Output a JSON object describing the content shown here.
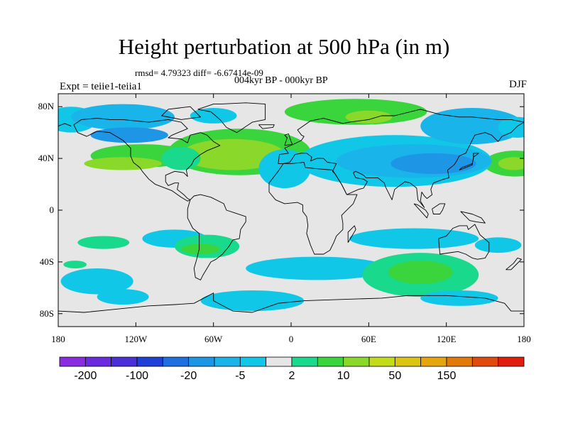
{
  "title": "Height perturbation at 500 hPa (in m)",
  "stats": "rmsd= 4.79323 diff= -6.67414e-09",
  "period": "004kyr BP - 000kyr BP",
  "experiment": "Expt = teiie1-teiia1",
  "season": "DJF",
  "map": {
    "projection": "cylindrical-equidistant",
    "lon_range": [
      -180,
      180
    ],
    "lat_range": [
      -90,
      90
    ],
    "ocean_land_background": "#e6e6e6",
    "lat_ticks": [
      {
        "value": 80,
        "label": "80N"
      },
      {
        "value": 40,
        "label": "40N"
      },
      {
        "value": 0,
        "label": "0"
      },
      {
        "value": -40,
        "label": "40S"
      },
      {
        "value": -80,
        "label": "80S"
      }
    ],
    "lon_ticks": [
      {
        "value": -180,
        "label": "180"
      },
      {
        "value": -120,
        "label": "120W"
      },
      {
        "value": -60,
        "label": "60W"
      },
      {
        "value": 0,
        "label": "0"
      },
      {
        "value": 60,
        "label": "60E"
      },
      {
        "value": 120,
        "label": "120E"
      },
      {
        "value": 180,
        "label": "180"
      }
    ]
  },
  "colorbar": {
    "colors": [
      "#8a2be2",
      "#6a2be0",
      "#4b2fd8",
      "#1f3fd6",
      "#1e6fe0",
      "#1e96e6",
      "#19b4ea",
      "#11c7e8",
      "#e6e6e6",
      "#18d98c",
      "#3ad43c",
      "#8ad82a",
      "#c2dc1a",
      "#dcc414",
      "#e6a50c",
      "#e27a0a",
      "#e04a0c",
      "#e01e10"
    ],
    "labels": [
      {
        "text": "-200",
        "after_box": 1
      },
      {
        "text": "-100",
        "after_box": 3
      },
      {
        "text": "-20",
        "after_box": 5
      },
      {
        "text": "-5",
        "after_box": 7
      },
      {
        "text": "2",
        "after_box": 9
      },
      {
        "text": "10",
        "after_box": 11
      },
      {
        "text": "50",
        "after_box": 13
      },
      {
        "text": "150",
        "after_box": 15
      }
    ]
  },
  "field_regions": [
    {
      "lon": -115,
      "lat": 42,
      "rx": 40,
      "ry": 9,
      "color": "#3ad43c"
    },
    {
      "lon": -130,
      "lat": 36,
      "rx": 30,
      "ry": 5,
      "color": "#8ad82a"
    },
    {
      "lon": 173,
      "lat": 36,
      "rx": 24,
      "ry": 10,
      "color": "#3ad43c"
    },
    {
      "lon": 172,
      "lat": 36,
      "rx": 12,
      "ry": 5,
      "color": "#8ad82a"
    },
    {
      "lon": -170,
      "lat": 70,
      "rx": 20,
      "ry": 10,
      "color": "#11c7e8"
    },
    {
      "lon": -130,
      "lat": 72,
      "rx": 40,
      "ry": 10,
      "color": "#19b4ea"
    },
    {
      "lon": -125,
      "lat": 58,
      "rx": 30,
      "ry": 6,
      "color": "#1e96e6"
    },
    {
      "lon": -60,
      "lat": 73,
      "rx": 18,
      "ry": 6,
      "color": "#11c7e8"
    },
    {
      "lon": -40,
      "lat": 45,
      "rx": 55,
      "ry": 18,
      "color": "#3ad43c"
    },
    {
      "lon": -45,
      "lat": 43,
      "rx": 40,
      "ry": 12,
      "color": "#8ad82a"
    },
    {
      "lon": -85,
      "lat": 40,
      "rx": 15,
      "ry": 9,
      "color": "#18d98c"
    },
    {
      "lon": 50,
      "lat": 76,
      "rx": 55,
      "ry": 10,
      "color": "#3ad43c"
    },
    {
      "lon": 60,
      "lat": 72,
      "rx": 18,
      "ry": 5,
      "color": "#8ad82a"
    },
    {
      "lon": -5,
      "lat": 32,
      "rx": 20,
      "ry": 15,
      "color": "#11c7e8"
    },
    {
      "lon": 80,
      "lat": 38,
      "rx": 75,
      "ry": 20,
      "color": "#11c7e8"
    },
    {
      "lon": 95,
      "lat": 38,
      "rx": 60,
      "ry": 13,
      "color": "#19b4ea"
    },
    {
      "lon": 110,
      "lat": 36,
      "rx": 33,
      "ry": 8,
      "color": "#1e96e6"
    },
    {
      "lon": 140,
      "lat": 65,
      "rx": 40,
      "ry": 14,
      "color": "#19b4ea"
    },
    {
      "lon": 175,
      "lat": 64,
      "rx": 15,
      "ry": 8,
      "color": "#11c7e8"
    },
    {
      "lon": -145,
      "lat": -25,
      "rx": 20,
      "ry": 5,
      "color": "#18d98c"
    },
    {
      "lon": -90,
      "lat": -22,
      "rx": 25,
      "ry": 7,
      "color": "#11c7e8"
    },
    {
      "lon": -65,
      "lat": -28,
      "rx": 25,
      "ry": 9,
      "color": "#18d98c"
    },
    {
      "lon": -70,
      "lat": -30,
      "rx": 15,
      "ry": 4,
      "color": "#3ad43c"
    },
    {
      "lon": -150,
      "lat": -55,
      "rx": 28,
      "ry": 10,
      "color": "#11c7e8"
    },
    {
      "lon": -130,
      "lat": -67,
      "rx": 20,
      "ry": 6,
      "color": "#11c7e8"
    },
    {
      "lon": -167,
      "lat": -42,
      "rx": 9,
      "ry": 3,
      "color": "#18d98c"
    },
    {
      "lon": 95,
      "lat": -22,
      "rx": 50,
      "ry": 8,
      "color": "#11c7e8"
    },
    {
      "lon": 160,
      "lat": -27,
      "rx": 18,
      "ry": 6,
      "color": "#11c7e8"
    },
    {
      "lon": 20,
      "lat": -45,
      "rx": 55,
      "ry": 9,
      "color": "#11c7e8"
    },
    {
      "lon": 100,
      "lat": -50,
      "rx": 45,
      "ry": 17,
      "color": "#18d98c"
    },
    {
      "lon": 100,
      "lat": -48,
      "rx": 25,
      "ry": 9,
      "color": "#3ad43c"
    },
    {
      "lon": -30,
      "lat": -70,
      "rx": 40,
      "ry": 8,
      "color": "#11c7e8"
    },
    {
      "lon": 130,
      "lat": -68,
      "rx": 30,
      "ry": 6,
      "color": "#11c7e8"
    }
  ],
  "coastlines": [
    [
      [
        -168,
        66
      ],
      [
        -162,
        70
      ],
      [
        -150,
        71
      ],
      [
        -140,
        70
      ],
      [
        -130,
        70
      ],
      [
        -120,
        69
      ],
      [
        -110,
        68
      ],
      [
        -95,
        70
      ],
      [
        -85,
        68
      ],
      [
        -80,
        63
      ],
      [
        -92,
        58
      ],
      [
        -95,
        56
      ],
      [
        -85,
        55
      ],
      [
        -80,
        52
      ],
      [
        -78,
        58
      ],
      [
        -70,
        60
      ],
      [
        -65,
        58
      ],
      [
        -60,
        53
      ],
      [
        -55,
        50
      ],
      [
        -65,
        46
      ],
      [
        -70,
        43
      ],
      [
        -75,
        39
      ],
      [
        -77,
        35
      ],
      [
        -81,
        31
      ],
      [
        -80,
        26
      ],
      [
        -83,
        29
      ],
      [
        -90,
        30
      ],
      [
        -97,
        27
      ],
      [
        -97,
        22
      ],
      [
        -95,
        19
      ],
      [
        -90,
        21
      ],
      [
        -87,
        21
      ],
      [
        -88,
        16
      ],
      [
        -83,
        12
      ],
      [
        -80,
        9
      ],
      [
        -78,
        8
      ],
      [
        -80,
        7
      ],
      [
        -85,
        10
      ],
      [
        -92,
        15
      ],
      [
        -105,
        20
      ],
      [
        -110,
        24
      ],
      [
        -115,
        30
      ],
      [
        -117,
        33
      ],
      [
        -122,
        37
      ],
      [
        -124,
        42
      ],
      [
        -124,
        48
      ],
      [
        -130,
        54
      ],
      [
        -140,
        60
      ],
      [
        -150,
        61
      ],
      [
        -158,
        57
      ],
      [
        -165,
        60
      ],
      [
        -168,
        66
      ]
    ],
    [
      [
        -55,
        82
      ],
      [
        -35,
        83
      ],
      [
        -20,
        82
      ],
      [
        -20,
        70
      ],
      [
        -30,
        68
      ],
      [
        -42,
        60
      ],
      [
        -50,
        64
      ],
      [
        -55,
        70
      ],
      [
        -62,
        76
      ],
      [
        -72,
        78
      ],
      [
        -60,
        82
      ],
      [
        -55,
        82
      ]
    ],
    [
      [
        -78,
        8
      ],
      [
        -75,
        11
      ],
      [
        -70,
        12
      ],
      [
        -62,
        10
      ],
      [
        -52,
        5
      ],
      [
        -50,
        0
      ],
      [
        -44,
        -2
      ],
      [
        -35,
        -5
      ],
      [
        -35,
        -9
      ],
      [
        -39,
        -15
      ],
      [
        -40,
        -22
      ],
      [
        -45,
        -23
      ],
      [
        -48,
        -28
      ],
      [
        -53,
        -34
      ],
      [
        -58,
        -38
      ],
      [
        -62,
        -40
      ],
      [
        -65,
        -45
      ],
      [
        -68,
        -50
      ],
      [
        -70,
        -54
      ],
      [
        -74,
        -52
      ],
      [
        -75,
        -45
      ],
      [
        -73,
        -38
      ],
      [
        -71,
        -30
      ],
      [
        -71,
        -18
      ],
      [
        -76,
        -14
      ],
      [
        -80,
        -6
      ],
      [
        -80,
        -2
      ],
      [
        -80,
        1
      ],
      [
        -78,
        8
      ]
    ],
    [
      [
        -10,
        36
      ],
      [
        -9,
        43
      ],
      [
        -2,
        44
      ],
      [
        -5,
        48
      ],
      [
        2,
        51
      ],
      [
        8,
        54
      ],
      [
        10,
        57
      ],
      [
        8,
        58
      ],
      [
        5,
        62
      ],
      [
        15,
        69
      ],
      [
        25,
        71
      ],
      [
        40,
        67
      ],
      [
        45,
        68
      ],
      [
        60,
        70
      ],
      [
        70,
        73
      ],
      [
        80,
        73
      ],
      [
        100,
        78
      ],
      [
        115,
        74
      ],
      [
        130,
        72
      ],
      [
        140,
        72
      ],
      [
        160,
        70
      ],
      [
        170,
        70
      ],
      [
        180,
        68
      ]
    ],
    [
      [
        -180,
        65
      ],
      [
        -175,
        67
      ],
      [
        -170,
        65
      ]
    ],
    [
      [
        180,
        68
      ],
      [
        175,
        65
      ],
      [
        170,
        60
      ],
      [
        163,
        57
      ],
      [
        160,
        53
      ],
      [
        155,
        58
      ],
      [
        150,
        60
      ],
      [
        142,
        58
      ],
      [
        140,
        54
      ],
      [
        135,
        44
      ],
      [
        130,
        42
      ],
      [
        128,
        38
      ],
      [
        126,
        35
      ],
      [
        121,
        31
      ],
      [
        122,
        25
      ],
      [
        118,
        24
      ],
      [
        110,
        21
      ],
      [
        108,
        16
      ],
      [
        109,
        12
      ],
      [
        105,
        9
      ],
      [
        103,
        11
      ],
      [
        101,
        14
      ],
      [
        100,
        7
      ],
      [
        103,
        2
      ],
      [
        98,
        8
      ],
      [
        97,
        17
      ],
      [
        92,
        21
      ],
      [
        88,
        22
      ],
      [
        80,
        16
      ],
      [
        78,
        8
      ],
      [
        73,
        18
      ],
      [
        72,
        21
      ],
      [
        67,
        25
      ],
      [
        58,
        25
      ],
      [
        56,
        27
      ],
      [
        50,
        30
      ],
      [
        48,
        29
      ],
      [
        50,
        25
      ],
      [
        56,
        24
      ],
      [
        59,
        22
      ],
      [
        56,
        17
      ],
      [
        52,
        16
      ],
      [
        43,
        12
      ],
      [
        39,
        20
      ],
      [
        34,
        28
      ],
      [
        32,
        30
      ],
      [
        35,
        36
      ],
      [
        28,
        37
      ],
      [
        25,
        40
      ],
      [
        20,
        40
      ],
      [
        15,
        38
      ],
      [
        16,
        41
      ],
      [
        12,
        44
      ],
      [
        8,
        44
      ],
      [
        3,
        43
      ],
      [
        -1,
        37
      ],
      [
        -6,
        36
      ],
      [
        -10,
        36
      ]
    ],
    [
      [
        -6,
        36
      ],
      [
        -10,
        30
      ],
      [
        -17,
        21
      ],
      [
        -17,
        14
      ],
      [
        -12,
        8
      ],
      [
        -5,
        5
      ],
      [
        5,
        6
      ],
      [
        9,
        4
      ],
      [
        9,
        -1
      ],
      [
        12,
        -5
      ],
      [
        13,
        -12
      ],
      [
        12,
        -18
      ],
      [
        15,
        -27
      ],
      [
        18,
        -34
      ],
      [
        25,
        -34
      ],
      [
        30,
        -31
      ],
      [
        33,
        -25
      ],
      [
        35,
        -20
      ],
      [
        40,
        -15
      ],
      [
        40,
        -10
      ],
      [
        39,
        -4
      ],
      [
        42,
        -1
      ],
      [
        48,
        5
      ],
      [
        51,
        12
      ],
      [
        43,
        12
      ],
      [
        39,
        20
      ],
      [
        34,
        28
      ],
      [
        32,
        31
      ],
      [
        20,
        32
      ],
      [
        11,
        33
      ],
      [
        10,
        37
      ],
      [
        0,
        36
      ],
      [
        -6,
        36
      ]
    ],
    [
      [
        44,
        -25
      ],
      [
        50,
        -15
      ],
      [
        49,
        -12
      ],
      [
        44,
        -17
      ],
      [
        44,
        -25
      ]
    ],
    [
      [
        114,
        -22
      ],
      [
        120,
        -20
      ],
      [
        125,
        -14
      ],
      [
        130,
        -12
      ],
      [
        136,
        -12
      ],
      [
        137,
        -15
      ],
      [
        142,
        -11
      ],
      [
        146,
        -19
      ],
      [
        153,
        -25
      ],
      [
        153,
        -32
      ],
      [
        150,
        -37
      ],
      [
        144,
        -38
      ],
      [
        140,
        -37
      ],
      [
        135,
        -34
      ],
      [
        129,
        -32
      ],
      [
        115,
        -34
      ],
      [
        114,
        -22
      ]
    ],
    [
      [
        166,
        -46
      ],
      [
        172,
        -41
      ],
      [
        175,
        -37
      ],
      [
        178,
        -38
      ],
      [
        174,
        -42
      ],
      [
        170,
        -46
      ],
      [
        166,
        -46
      ]
    ],
    [
      [
        -180,
        -78
      ],
      [
        -160,
        -79
      ],
      [
        -140,
        -77
      ],
      [
        -110,
        -74
      ],
      [
        -90,
        -73
      ],
      [
        -75,
        -72
      ],
      [
        -60,
        -64
      ],
      [
        -60,
        -70
      ],
      [
        -45,
        -78
      ],
      [
        -30,
        -79
      ],
      [
        -10,
        -72
      ],
      [
        10,
        -70
      ],
      [
        40,
        -69
      ],
      [
        70,
        -68
      ],
      [
        90,
        -66
      ],
      [
        120,
        -66
      ],
      [
        150,
        -68
      ],
      [
        165,
        -72
      ],
      [
        170,
        -78
      ],
      [
        180,
        -78
      ]
    ],
    [
      [
        -5,
        50
      ],
      [
        -3,
        56
      ],
      [
        -5,
        58
      ],
      [
        -2,
        59
      ],
      [
        0,
        53
      ],
      [
        1,
        51
      ],
      [
        -5,
        50
      ]
    ],
    [
      [
        130,
        31
      ],
      [
        132,
        33
      ],
      [
        135,
        34
      ],
      [
        140,
        36
      ],
      [
        141,
        40
      ],
      [
        141,
        44
      ],
      [
        145,
        44
      ],
      [
        141,
        41
      ],
      [
        140,
        35
      ],
      [
        135,
        33
      ],
      [
        130,
        31
      ]
    ],
    [
      [
        95,
        5
      ],
      [
        105,
        -6
      ],
      [
        106,
        -3
      ],
      [
        104,
        0
      ],
      [
        98,
        4
      ],
      [
        95,
        5
      ]
    ],
    [
      [
        109,
        1
      ],
      [
        115,
        5
      ],
      [
        119,
        5
      ],
      [
        117,
        0
      ],
      [
        115,
        -3
      ],
      [
        110,
        -3
      ],
      [
        109,
        1
      ]
    ],
    [
      [
        131,
        -1
      ],
      [
        140,
        -3
      ],
      [
        147,
        -6
      ],
      [
        150,
        -10
      ],
      [
        143,
        -9
      ],
      [
        138,
        -8
      ],
      [
        131,
        -1
      ]
    ],
    [
      [
        -25,
        66
      ],
      [
        -13,
        66
      ],
      [
        -14,
        64
      ],
      [
        -22,
        63
      ],
      [
        -25,
        66
      ]
    ],
    [
      [
        -85,
        70
      ],
      [
        -70,
        72
      ],
      [
        -78,
        80
      ],
      [
        -95,
        78
      ],
      [
        -100,
        73
      ],
      [
        -85,
        70
      ]
    ]
  ]
}
